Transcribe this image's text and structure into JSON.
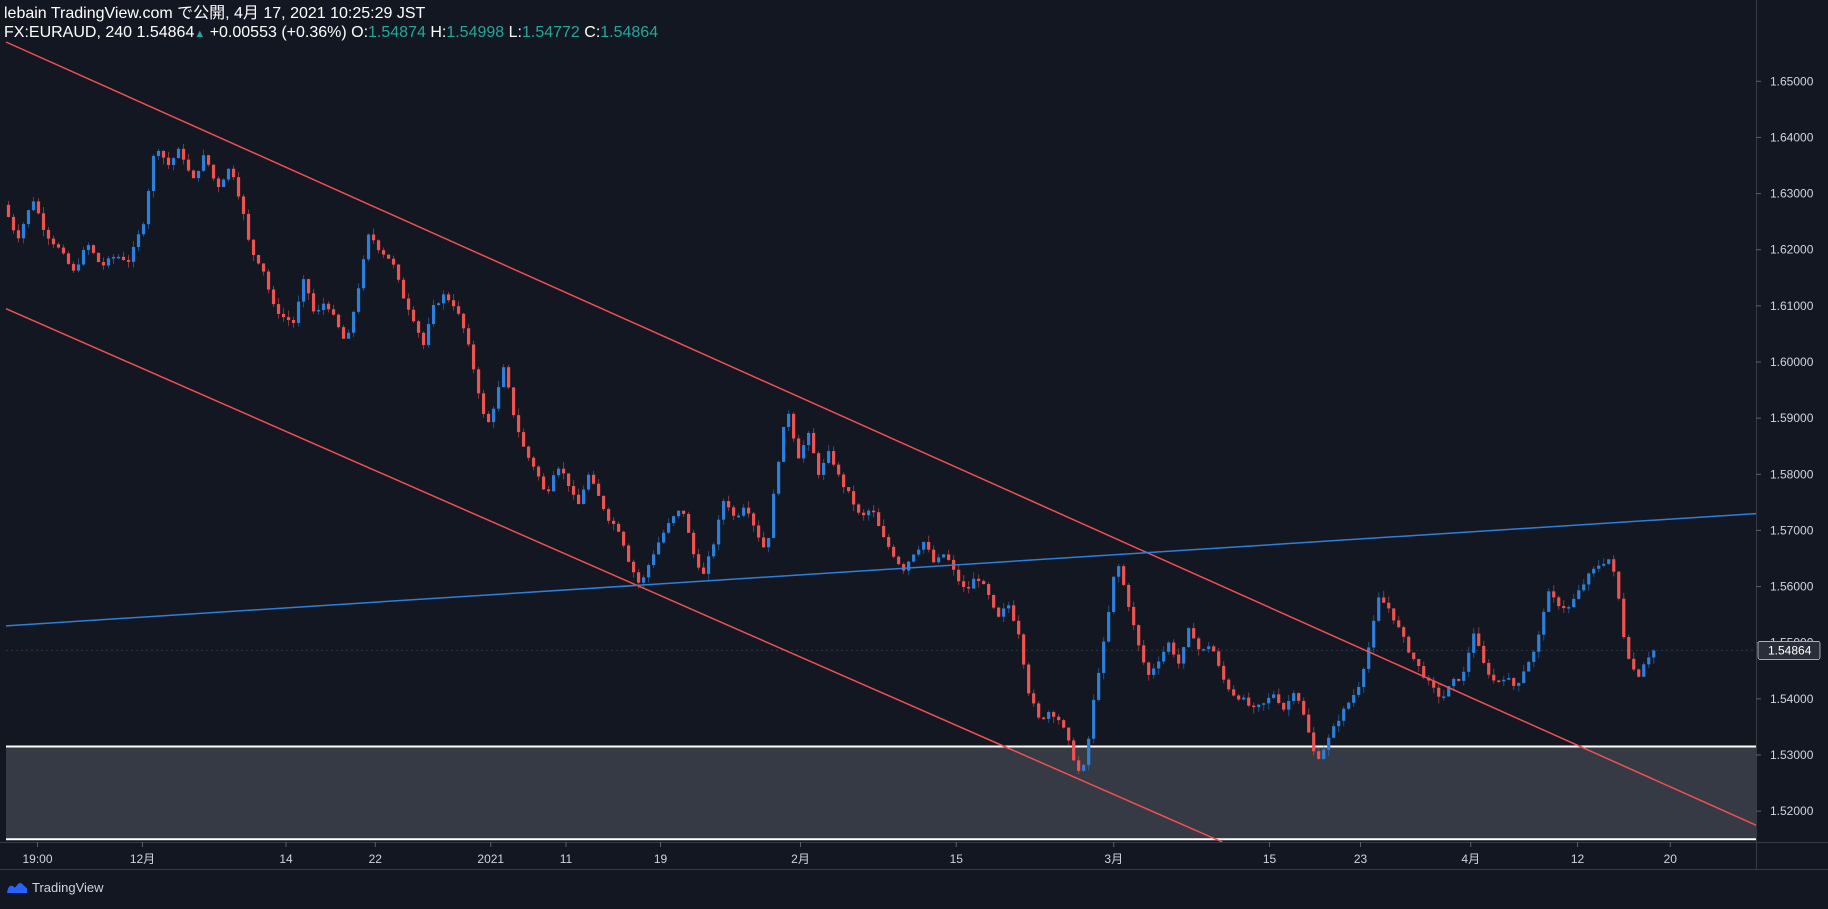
{
  "header": {
    "publish_line": "lebain TradingView.com で公開, 4月 17, 2021 10:25:29 JST",
    "symbol": "FX:EURAUD, 240",
    "last": "1.54864",
    "change": "+0.00553 (+0.36%)",
    "o_label": "O:",
    "o_value": "1.54874",
    "h_label": "H:",
    "h_value": "1.54998",
    "l_label": "L:",
    "l_value": "1.54772",
    "c_label": "C:",
    "c_value": "1.54864",
    "up_arrow": "▲"
  },
  "footer": {
    "brand": "TradingView",
    "icon": "tradingview-logo-icon"
  },
  "colors": {
    "background": "#131722",
    "candle_up": "#2e7fd9",
    "candle_down": "#ef5350",
    "channel": "#f05050",
    "trendline": "#2e7fd9",
    "zone_fill": "#363a45",
    "zone_line": "#ffffff",
    "axis_text": "#d1d4dc",
    "price_tag": "#2a2e39"
  },
  "chart_data": {
    "type": "candlestick",
    "symbol": "FX:EURAUD",
    "timeframe": "240",
    "ylim": [
      1.5145,
      1.657
    ],
    "y_ticks": [
      "1.52000",
      "1.53000",
      "1.54000",
      "1.55000",
      "1.56000",
      "1.57000",
      "1.58000",
      "1.59000",
      "1.60000",
      "1.61000",
      "1.62000",
      "1.63000",
      "1.64000",
      "1.65000"
    ],
    "y_tick_values": [
      1.52,
      1.53,
      1.54,
      1.55,
      1.56,
      1.57,
      1.58,
      1.59,
      1.6,
      1.61,
      1.62,
      1.63,
      1.64,
      1.65
    ],
    "x_ticks": [
      {
        "label": "19:00",
        "t": 0.018
      },
      {
        "label": "12月",
        "t": 0.078
      },
      {
        "label": "14",
        "t": 0.16
      },
      {
        "label": "22",
        "t": 0.211
      },
      {
        "label": "2021",
        "t": 0.277
      },
      {
        "label": "11",
        "t": 0.32
      },
      {
        "label": "19",
        "t": 0.374
      },
      {
        "label": "2月",
        "t": 0.454
      },
      {
        "label": "15",
        "t": 0.543
      },
      {
        "label": "3月",
        "t": 0.633
      },
      {
        "label": "15",
        "t": 0.722
      },
      {
        "label": "23",
        "t": 0.774
      },
      {
        "label": "4月",
        "t": 0.837
      },
      {
        "label": "12",
        "t": 0.898
      },
      {
        "label": "20",
        "t": 0.951
      }
    ],
    "current_price": "1.54864",
    "current_value": 1.54864,
    "price_path": [
      [
        0.0,
        1.628
      ],
      [
        0.008,
        1.622
      ],
      [
        0.017,
        1.629
      ],
      [
        0.024,
        1.623
      ],
      [
        0.032,
        1.62
      ],
      [
        0.04,
        1.616
      ],
      [
        0.048,
        1.621
      ],
      [
        0.056,
        1.617
      ],
      [
        0.064,
        1.619
      ],
      [
        0.072,
        1.618
      ],
      [
        0.08,
        1.625
      ],
      [
        0.087,
        1.639
      ],
      [
        0.094,
        1.635
      ],
      [
        0.101,
        1.638
      ],
      [
        0.108,
        1.632
      ],
      [
        0.115,
        1.637
      ],
      [
        0.122,
        1.631
      ],
      [
        0.13,
        1.635
      ],
      [
        0.136,
        1.628
      ],
      [
        0.141,
        1.62
      ],
      [
        0.148,
        1.617
      ],
      [
        0.154,
        1.61
      ],
      [
        0.16,
        1.608
      ],
      [
        0.166,
        1.607
      ],
      [
        0.172,
        1.615
      ],
      [
        0.178,
        1.608
      ],
      [
        0.184,
        1.611
      ],
      [
        0.19,
        1.607
      ],
      [
        0.196,
        1.603
      ],
      [
        0.202,
        1.612
      ],
      [
        0.209,
        1.623
      ],
      [
        0.215,
        1.62
      ],
      [
        0.222,
        1.618
      ],
      [
        0.228,
        1.612
      ],
      [
        0.234,
        1.608
      ],
      [
        0.24,
        1.603
      ],
      [
        0.246,
        1.61
      ],
      [
        0.252,
        1.612
      ],
      [
        0.258,
        1.61
      ],
      [
        0.264,
        1.605
      ],
      [
        0.27,
        1.597
      ],
      [
        0.276,
        1.588
      ],
      [
        0.281,
        1.593
      ],
      [
        0.286,
        1.599
      ],
      [
        0.292,
        1.59
      ],
      [
        0.298,
        1.584
      ],
      [
        0.304,
        1.581
      ],
      [
        0.31,
        1.576
      ],
      [
        0.316,
        1.582
      ],
      [
        0.322,
        1.579
      ],
      [
        0.328,
        1.574
      ],
      [
        0.334,
        1.58
      ],
      [
        0.34,
        1.576
      ],
      [
        0.346,
        1.572
      ],
      [
        0.352,
        1.57
      ],
      [
        0.358,
        1.564
      ],
      [
        0.364,
        1.56
      ],
      [
        0.37,
        1.565
      ],
      [
        0.376,
        1.569
      ],
      [
        0.382,
        1.572
      ],
      [
        0.388,
        1.574
      ],
      [
        0.394,
        1.566
      ],
      [
        0.4,
        1.562
      ],
      [
        0.406,
        1.568
      ],
      [
        0.412,
        1.576
      ],
      [
        0.418,
        1.572
      ],
      [
        0.424,
        1.575
      ],
      [
        0.43,
        1.57
      ],
      [
        0.436,
        1.566
      ],
      [
        0.442,
        1.581
      ],
      [
        0.448,
        1.592
      ],
      [
        0.454,
        1.583
      ],
      [
        0.46,
        1.587
      ],
      [
        0.466,
        1.58
      ],
      [
        0.472,
        1.584
      ],
      [
        0.478,
        1.579
      ],
      [
        0.484,
        1.576
      ],
      [
        0.49,
        1.572
      ],
      [
        0.496,
        1.574
      ],
      [
        0.502,
        1.569
      ],
      [
        0.508,
        1.566
      ],
      [
        0.514,
        1.563
      ],
      [
        0.52,
        1.566
      ],
      [
        0.526,
        1.568
      ],
      [
        0.532,
        1.564
      ],
      [
        0.538,
        1.566
      ],
      [
        0.544,
        1.562
      ],
      [
        0.55,
        1.559
      ],
      [
        0.556,
        1.562
      ],
      [
        0.562,
        1.559
      ],
      [
        0.568,
        1.554
      ],
      [
        0.574,
        1.557
      ],
      [
        0.58,
        1.552
      ],
      [
        0.586,
        1.541
      ],
      [
        0.592,
        1.536
      ],
      [
        0.598,
        1.538
      ],
      [
        0.604,
        1.536
      ],
      [
        0.61,
        1.531
      ],
      [
        0.614,
        1.527
      ],
      [
        0.618,
        1.528
      ],
      [
        0.624,
        1.542
      ],
      [
        0.63,
        1.552
      ],
      [
        0.636,
        1.565
      ],
      [
        0.642,
        1.558
      ],
      [
        0.648,
        1.55
      ],
      [
        0.654,
        1.544
      ],
      [
        0.66,
        1.547
      ],
      [
        0.666,
        1.55
      ],
      [
        0.672,
        1.546
      ],
      [
        0.678,
        1.553
      ],
      [
        0.684,
        1.548
      ],
      [
        0.69,
        1.55
      ],
      [
        0.696,
        1.544
      ],
      [
        0.702,
        1.541
      ],
      [
        0.708,
        1.54
      ],
      [
        0.714,
        1.538
      ],
      [
        0.72,
        1.539
      ],
      [
        0.726,
        1.541
      ],
      [
        0.732,
        1.538
      ],
      [
        0.738,
        1.542
      ],
      [
        0.744,
        1.536
      ],
      [
        0.75,
        1.529
      ],
      [
        0.756,
        1.532
      ],
      [
        0.762,
        1.536
      ],
      [
        0.768,
        1.539
      ],
      [
        0.774,
        1.542
      ],
      [
        0.78,
        1.549
      ],
      [
        0.786,
        1.558
      ],
      [
        0.792,
        1.556
      ],
      [
        0.798,
        1.552
      ],
      [
        0.804,
        1.548
      ],
      [
        0.81,
        1.545
      ],
      [
        0.816,
        1.542
      ],
      [
        0.822,
        1.54
      ],
      [
        0.828,
        1.543
      ],
      [
        0.834,
        1.544
      ],
      [
        0.84,
        1.552
      ],
      [
        0.846,
        1.546
      ],
      [
        0.852,
        1.543
      ],
      [
        0.858,
        1.544
      ],
      [
        0.864,
        1.542
      ],
      [
        0.87,
        1.546
      ],
      [
        0.876,
        1.549
      ],
      [
        0.882,
        1.559
      ],
      [
        0.888,
        1.557
      ],
      [
        0.894,
        1.556
      ],
      [
        0.9,
        1.559
      ],
      [
        0.906,
        1.562
      ],
      [
        0.912,
        1.564
      ],
      [
        0.918,
        1.565
      ],
      [
        0.922,
        1.56
      ],
      [
        0.926,
        1.551
      ],
      [
        0.93,
        1.546
      ],
      [
        0.934,
        1.544
      ],
      [
        0.938,
        1.547
      ],
      [
        0.943,
        1.5486
      ]
    ],
    "drawings": {
      "channel_upper": [
        [
          0.0,
          1.657
        ],
        [
          1.0,
          1.5175
        ]
      ],
      "channel_lower": [
        [
          0.0,
          1.6095
        ],
        [
          0.695,
          1.5145
        ]
      ],
      "trendline": [
        [
          0.0,
          1.553
        ],
        [
          1.0,
          1.573
        ]
      ],
      "zone": [
        1.515,
        1.5315
      ]
    }
  }
}
